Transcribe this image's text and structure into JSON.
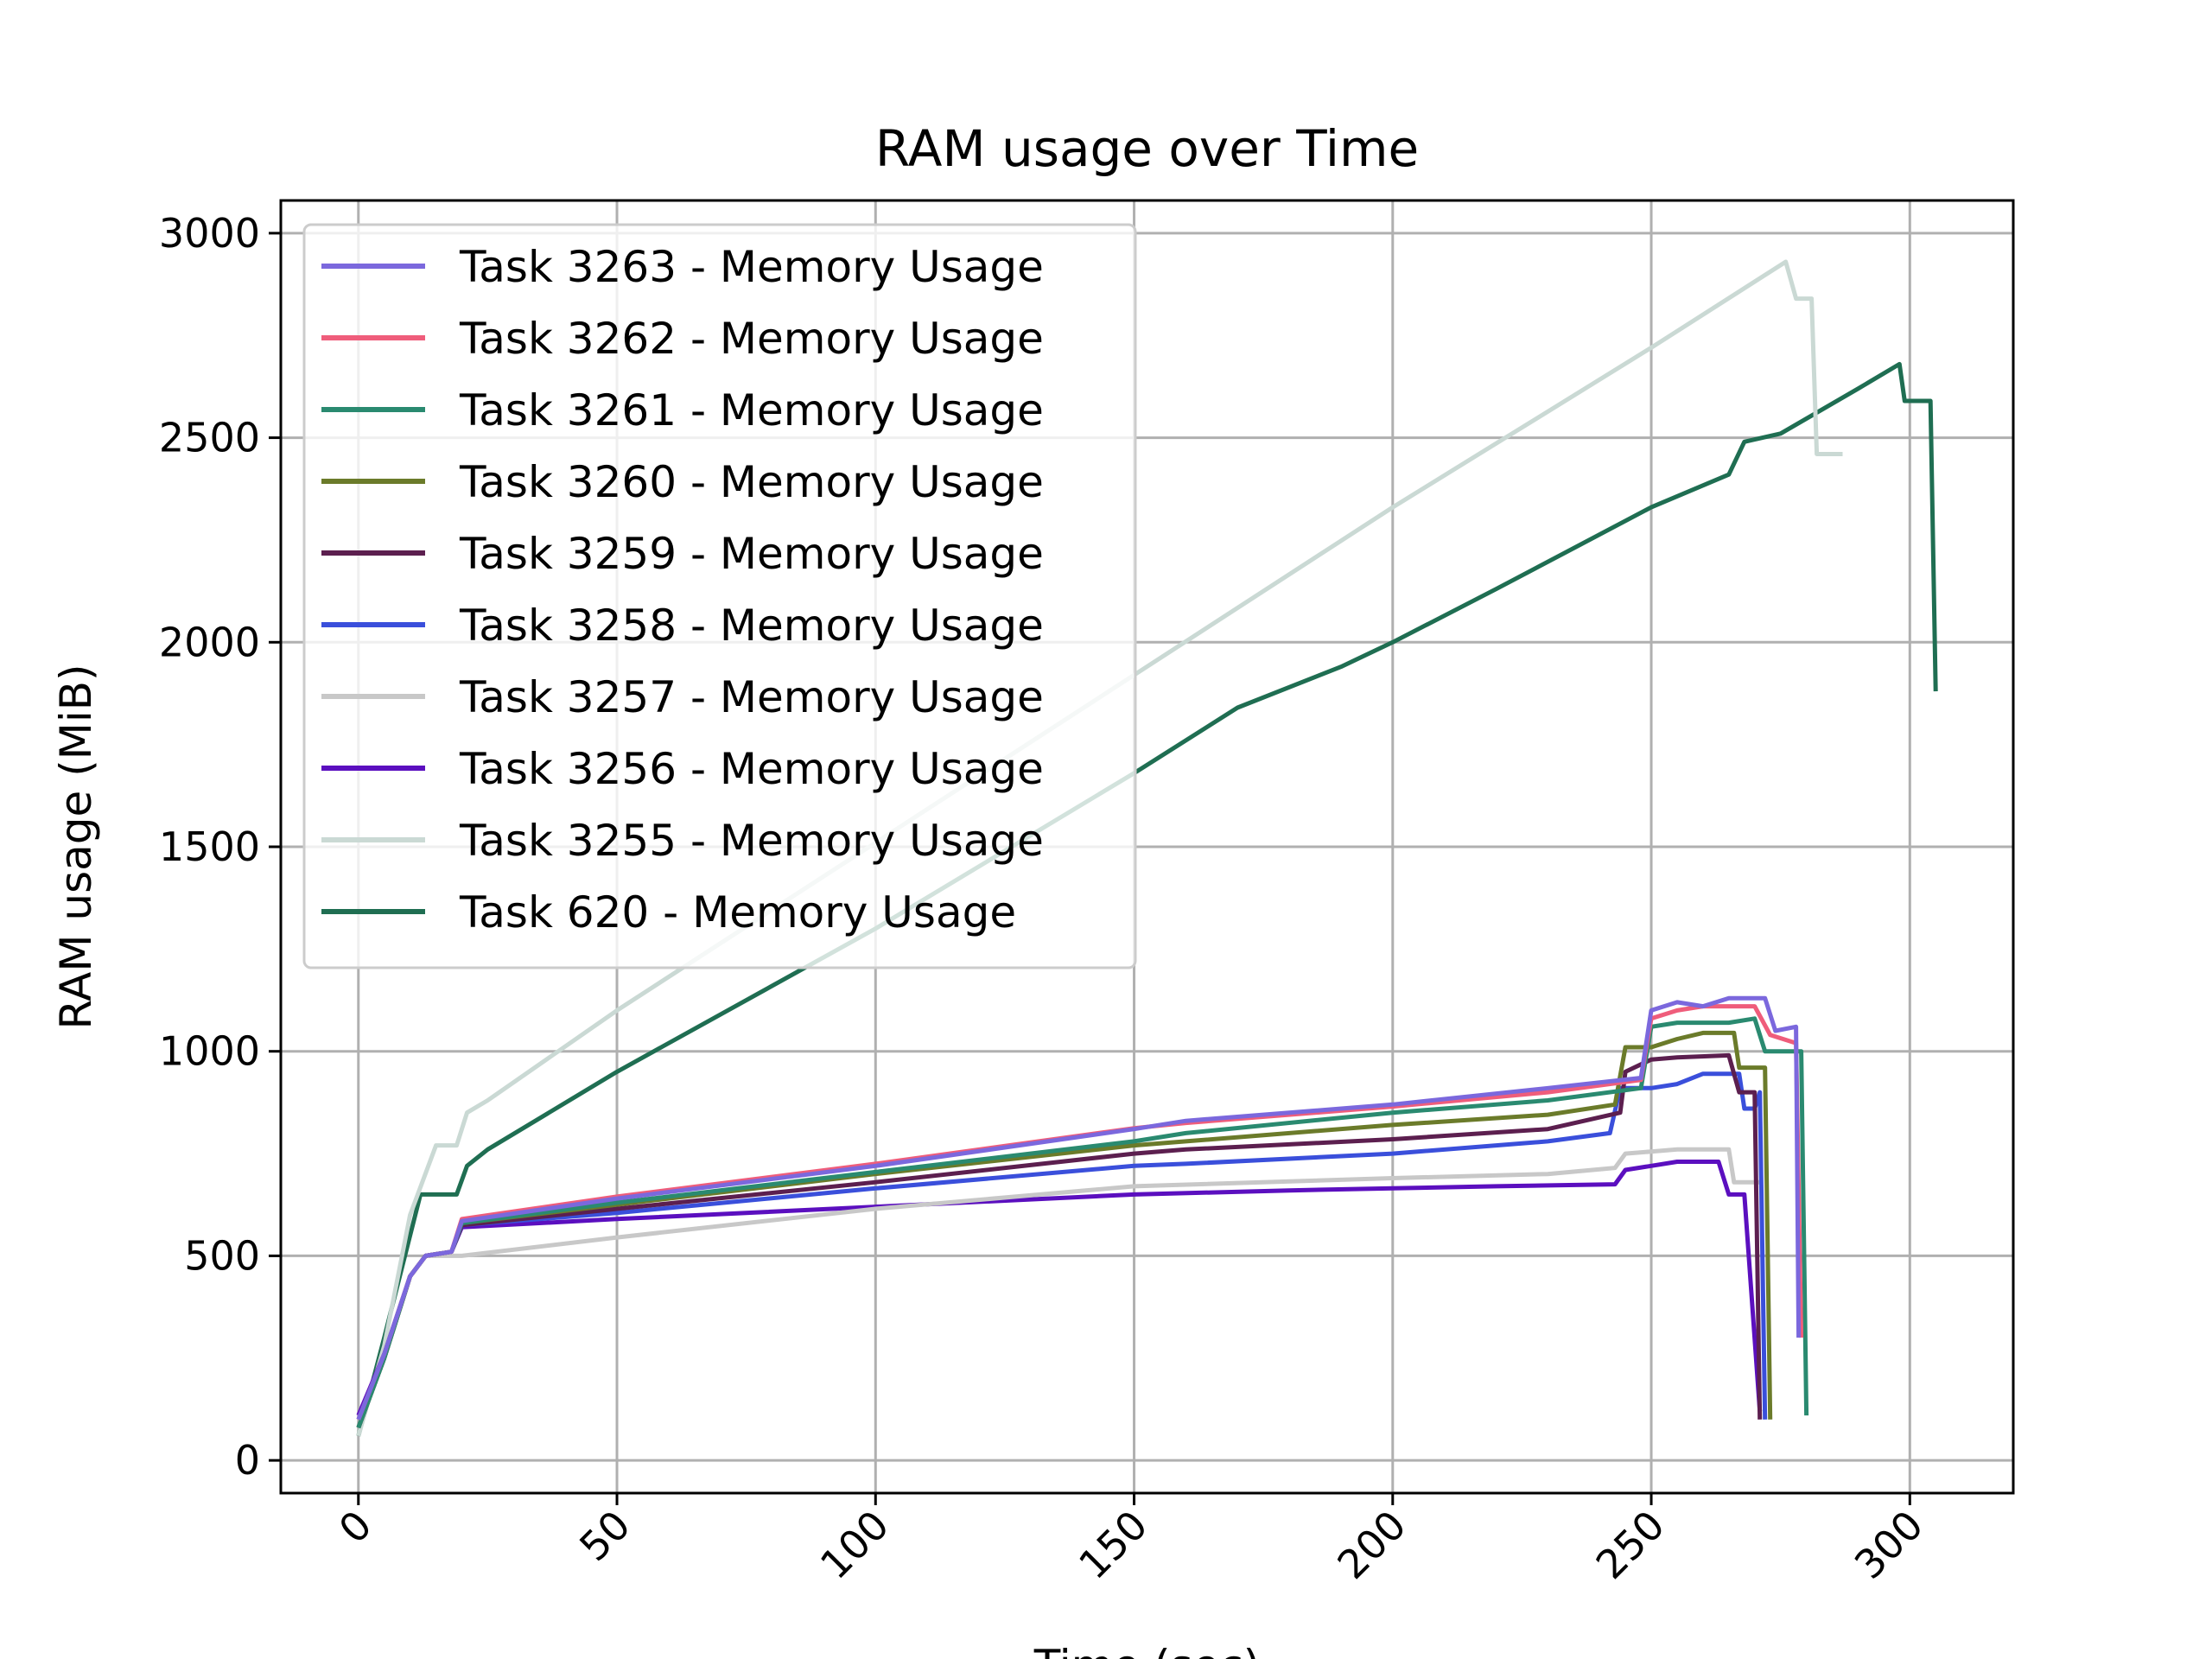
{
  "chart_data": {
    "type": "line",
    "title": "RAM usage over Time",
    "xlabel": "Time (sec)",
    "ylabel": "RAM usage (MiB)",
    "xlim": [
      -15,
      320
    ],
    "ylim": [
      -80,
      3080
    ],
    "xticks": [
      0,
      50,
      100,
      150,
      200,
      250,
      300
    ],
    "yticks": [
      0,
      500,
      1000,
      1500,
      2000,
      2500,
      3000
    ],
    "grid": true,
    "legend_position": "upper-left",
    "series": [
      {
        "name": "Task 3263 - Memory Usage",
        "color": "#7b68dd",
        "points": [
          [
            0,
            100
          ],
          [
            5,
            260
          ],
          [
            10,
            450
          ],
          [
            13,
            500
          ],
          [
            18,
            510
          ],
          [
            20,
            585
          ],
          [
            50,
            640
          ],
          [
            100,
            720
          ],
          [
            150,
            810
          ],
          [
            160,
            830
          ],
          [
            200,
            870
          ],
          [
            230,
            910
          ],
          [
            248,
            935
          ],
          [
            250,
            1100
          ],
          [
            255,
            1120
          ],
          [
            260,
            1110
          ],
          [
            265,
            1130
          ],
          [
            272,
            1130
          ],
          [
            274,
            1050
          ],
          [
            278,
            1060
          ],
          [
            278.5,
            300
          ]
        ]
      },
      {
        "name": "Task 3262 - Memory Usage",
        "color": "#ef5d7b",
        "points": [
          [
            0,
            100
          ],
          [
            5,
            260
          ],
          [
            10,
            450
          ],
          [
            13,
            500
          ],
          [
            18,
            510
          ],
          [
            20,
            590
          ],
          [
            50,
            645
          ],
          [
            100,
            725
          ],
          [
            150,
            812
          ],
          [
            160,
            825
          ],
          [
            200,
            865
          ],
          [
            230,
            900
          ],
          [
            248,
            930
          ],
          [
            250,
            1080
          ],
          [
            255,
            1100
          ],
          [
            260,
            1110
          ],
          [
            270,
            1110
          ],
          [
            273,
            1040
          ],
          [
            278,
            1020
          ],
          [
            279,
            300
          ]
        ]
      },
      {
        "name": "Task 3261 - Memory Usage",
        "color": "#2a8a70",
        "points": [
          [
            0,
            80
          ],
          [
            5,
            250
          ],
          [
            10,
            450
          ],
          [
            13,
            500
          ],
          [
            18,
            510
          ],
          [
            20,
            580
          ],
          [
            50,
            630
          ],
          [
            100,
            705
          ],
          [
            150,
            780
          ],
          [
            160,
            800
          ],
          [
            200,
            850
          ],
          [
            230,
            880
          ],
          [
            248,
            910
          ],
          [
            250,
            1060
          ],
          [
            255,
            1070
          ],
          [
            265,
            1070
          ],
          [
            270,
            1080
          ],
          [
            272,
            1000
          ],
          [
            279,
            1000
          ],
          [
            280,
            110
          ]
        ]
      },
      {
        "name": "Task 3260 - Memory Usage",
        "color": "#6b7b2a",
        "points": [
          [
            0,
            80
          ],
          [
            5,
            250
          ],
          [
            10,
            450
          ],
          [
            13,
            500
          ],
          [
            18,
            510
          ],
          [
            20,
            580
          ],
          [
            50,
            625
          ],
          [
            100,
            700
          ],
          [
            150,
            770
          ],
          [
            160,
            780
          ],
          [
            200,
            820
          ],
          [
            230,
            845
          ],
          [
            243,
            870
          ],
          [
            245,
            1010
          ],
          [
            250,
            1010
          ],
          [
            255,
            1030
          ],
          [
            260,
            1045
          ],
          [
            266,
            1045
          ],
          [
            267,
            960
          ],
          [
            272,
            960
          ],
          [
            273,
            100
          ]
        ]
      },
      {
        "name": "Task 3259 - Memory Usage",
        "color": "#5c1f4f",
        "points": [
          [
            0,
            80
          ],
          [
            5,
            250
          ],
          [
            10,
            450
          ],
          [
            13,
            500
          ],
          [
            18,
            510
          ],
          [
            20,
            575
          ],
          [
            50,
            615
          ],
          [
            100,
            680
          ],
          [
            150,
            750
          ],
          [
            160,
            760
          ],
          [
            200,
            785
          ],
          [
            230,
            810
          ],
          [
            244,
            850
          ],
          [
            245,
            950
          ],
          [
            250,
            980
          ],
          [
            255,
            985
          ],
          [
            265,
            990
          ],
          [
            267,
            900
          ],
          [
            270,
            900
          ],
          [
            271,
            100
          ]
        ]
      },
      {
        "name": "Task 3258 - Memory Usage",
        "color": "#3a4fdb",
        "points": [
          [
            0,
            80
          ],
          [
            5,
            250
          ],
          [
            10,
            450
          ],
          [
            13,
            500
          ],
          [
            18,
            510
          ],
          [
            20,
            575
          ],
          [
            50,
            605
          ],
          [
            100,
            665
          ],
          [
            150,
            720
          ],
          [
            160,
            725
          ],
          [
            200,
            750
          ],
          [
            230,
            780
          ],
          [
            242,
            800
          ],
          [
            244,
            910
          ],
          [
            250,
            910
          ],
          [
            255,
            920
          ],
          [
            260,
            945
          ],
          [
            267,
            945
          ],
          [
            268,
            860
          ],
          [
            270,
            860
          ],
          [
            271,
            900
          ],
          [
            272,
            100
          ]
        ]
      },
      {
        "name": "Task 3257 - Memory Usage",
        "color": "#c8c8c8",
        "points": [
          [
            0,
            80
          ],
          [
            5,
            250
          ],
          [
            10,
            450
          ],
          [
            13,
            500
          ],
          [
            20,
            500
          ],
          [
            50,
            545
          ],
          [
            100,
            615
          ],
          [
            150,
            670
          ],
          [
            200,
            690
          ],
          [
            230,
            700
          ],
          [
            243,
            715
          ],
          [
            245,
            750
          ],
          [
            250,
            755
          ],
          [
            255,
            760
          ],
          [
            265,
            760
          ],
          [
            266,
            680
          ],
          [
            271,
            680
          ]
        ]
      },
      {
        "name": "Task 3256 - Memory Usage",
        "color": "#5b0fbf",
        "points": [
          [
            0,
            110
          ],
          [
            5,
            260
          ],
          [
            10,
            450
          ],
          [
            13,
            500
          ],
          [
            18,
            510
          ],
          [
            20,
            570
          ],
          [
            50,
            590
          ],
          [
            100,
            620
          ],
          [
            150,
            650
          ],
          [
            180,
            660
          ],
          [
            200,
            665
          ],
          [
            220,
            670
          ],
          [
            243,
            675
          ],
          [
            245,
            710
          ],
          [
            250,
            720
          ],
          [
            255,
            730
          ],
          [
            263,
            730
          ],
          [
            265,
            650
          ],
          [
            268,
            650
          ],
          [
            271,
            120
          ]
        ]
      },
      {
        "name": "Task 3255 - Memory Usage",
        "color": "#cad9d4",
        "points": [
          [
            0,
            60
          ],
          [
            5,
            280
          ],
          [
            10,
            600
          ],
          [
            15,
            770
          ],
          [
            19,
            770
          ],
          [
            21,
            850
          ],
          [
            25,
            880
          ],
          [
            50,
            1100
          ],
          [
            100,
            1510
          ],
          [
            150,
            1920
          ],
          [
            200,
            2330
          ],
          [
            250,
            2720
          ],
          [
            276,
            2930
          ],
          [
            278,
            2840
          ],
          [
            281,
            2840
          ],
          [
            282,
            2460
          ],
          [
            287,
            2460
          ]
        ]
      },
      {
        "name": "Task 620 - Memory Usage",
        "color": "#1f6e52",
        "points": [
          [
            0,
            60
          ],
          [
            5,
            300
          ],
          [
            12,
            650
          ],
          [
            19,
            650
          ],
          [
            21,
            720
          ],
          [
            25,
            760
          ],
          [
            50,
            950
          ],
          [
            100,
            1300
          ],
          [
            150,
            1680
          ],
          [
            170,
            1840
          ],
          [
            190,
            1940
          ],
          [
            200,
            2000
          ],
          [
            220,
            2130
          ],
          [
            250,
            2330
          ],
          [
            265,
            2410
          ],
          [
            268,
            2490
          ],
          [
            275,
            2510
          ],
          [
            290,
            2620
          ],
          [
            298,
            2680
          ],
          [
            299,
            2590
          ],
          [
            304,
            2590
          ],
          [
            305,
            1880
          ]
        ]
      }
    ]
  }
}
